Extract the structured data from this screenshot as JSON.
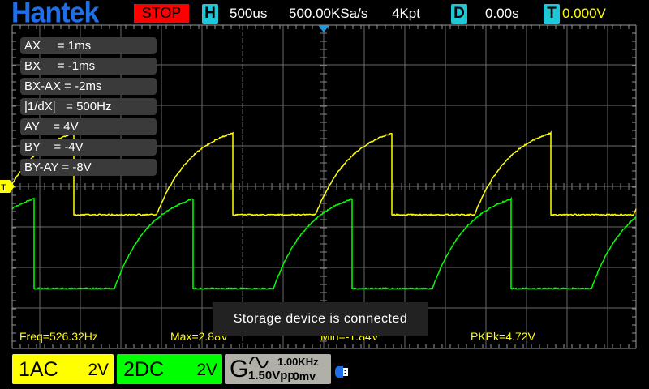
{
  "header": {
    "logo": "Hantek",
    "run_state": "STOP",
    "h_badge": "H",
    "timebase": "500us",
    "sample_rate": "500.00KSa/s",
    "memory_depth": "4Kpt",
    "d_badge": "D",
    "delay": "0.00s",
    "t_badge": "T",
    "trigger_level": "0.000V"
  },
  "cursors": [
    {
      "label": "AX     = 1ms"
    },
    {
      "label": "BX     = -1ms"
    },
    {
      "label": "BX-AX = -2ms"
    },
    {
      "label": "|1/dX|   = 500Hz"
    },
    {
      "label": "AY    = 4V"
    },
    {
      "label": "BY    = -4V"
    },
    {
      "label": "BY-AY = -8V"
    }
  ],
  "trigger_marker": "T",
  "measurements": {
    "freq": "Freq=526.32Hz",
    "max": "Max=2.88V",
    "min": "Min=-1.84V",
    "pkpk": "PKPk=4.72V"
  },
  "toast": "Storage device is connected",
  "channels": [
    {
      "name": "1AC",
      "scale": "2V",
      "color": "#ffff00"
    },
    {
      "name": "2DC",
      "scale": "2V",
      "color": "#00ff00"
    }
  ],
  "generator": {
    "label": "G",
    "waveform_icon": "sine-icon",
    "frequency": "1.00KHz",
    "amplitude": "1.50Vpp",
    "offset": "0mv"
  },
  "usb_icon": "usb-storage-icon",
  "colors": {
    "ch1": "#ffff00",
    "ch2": "#00ff00",
    "logo": "#1e6fe8",
    "stop": "#ff0000",
    "badge": "#1ec8d8"
  }
}
